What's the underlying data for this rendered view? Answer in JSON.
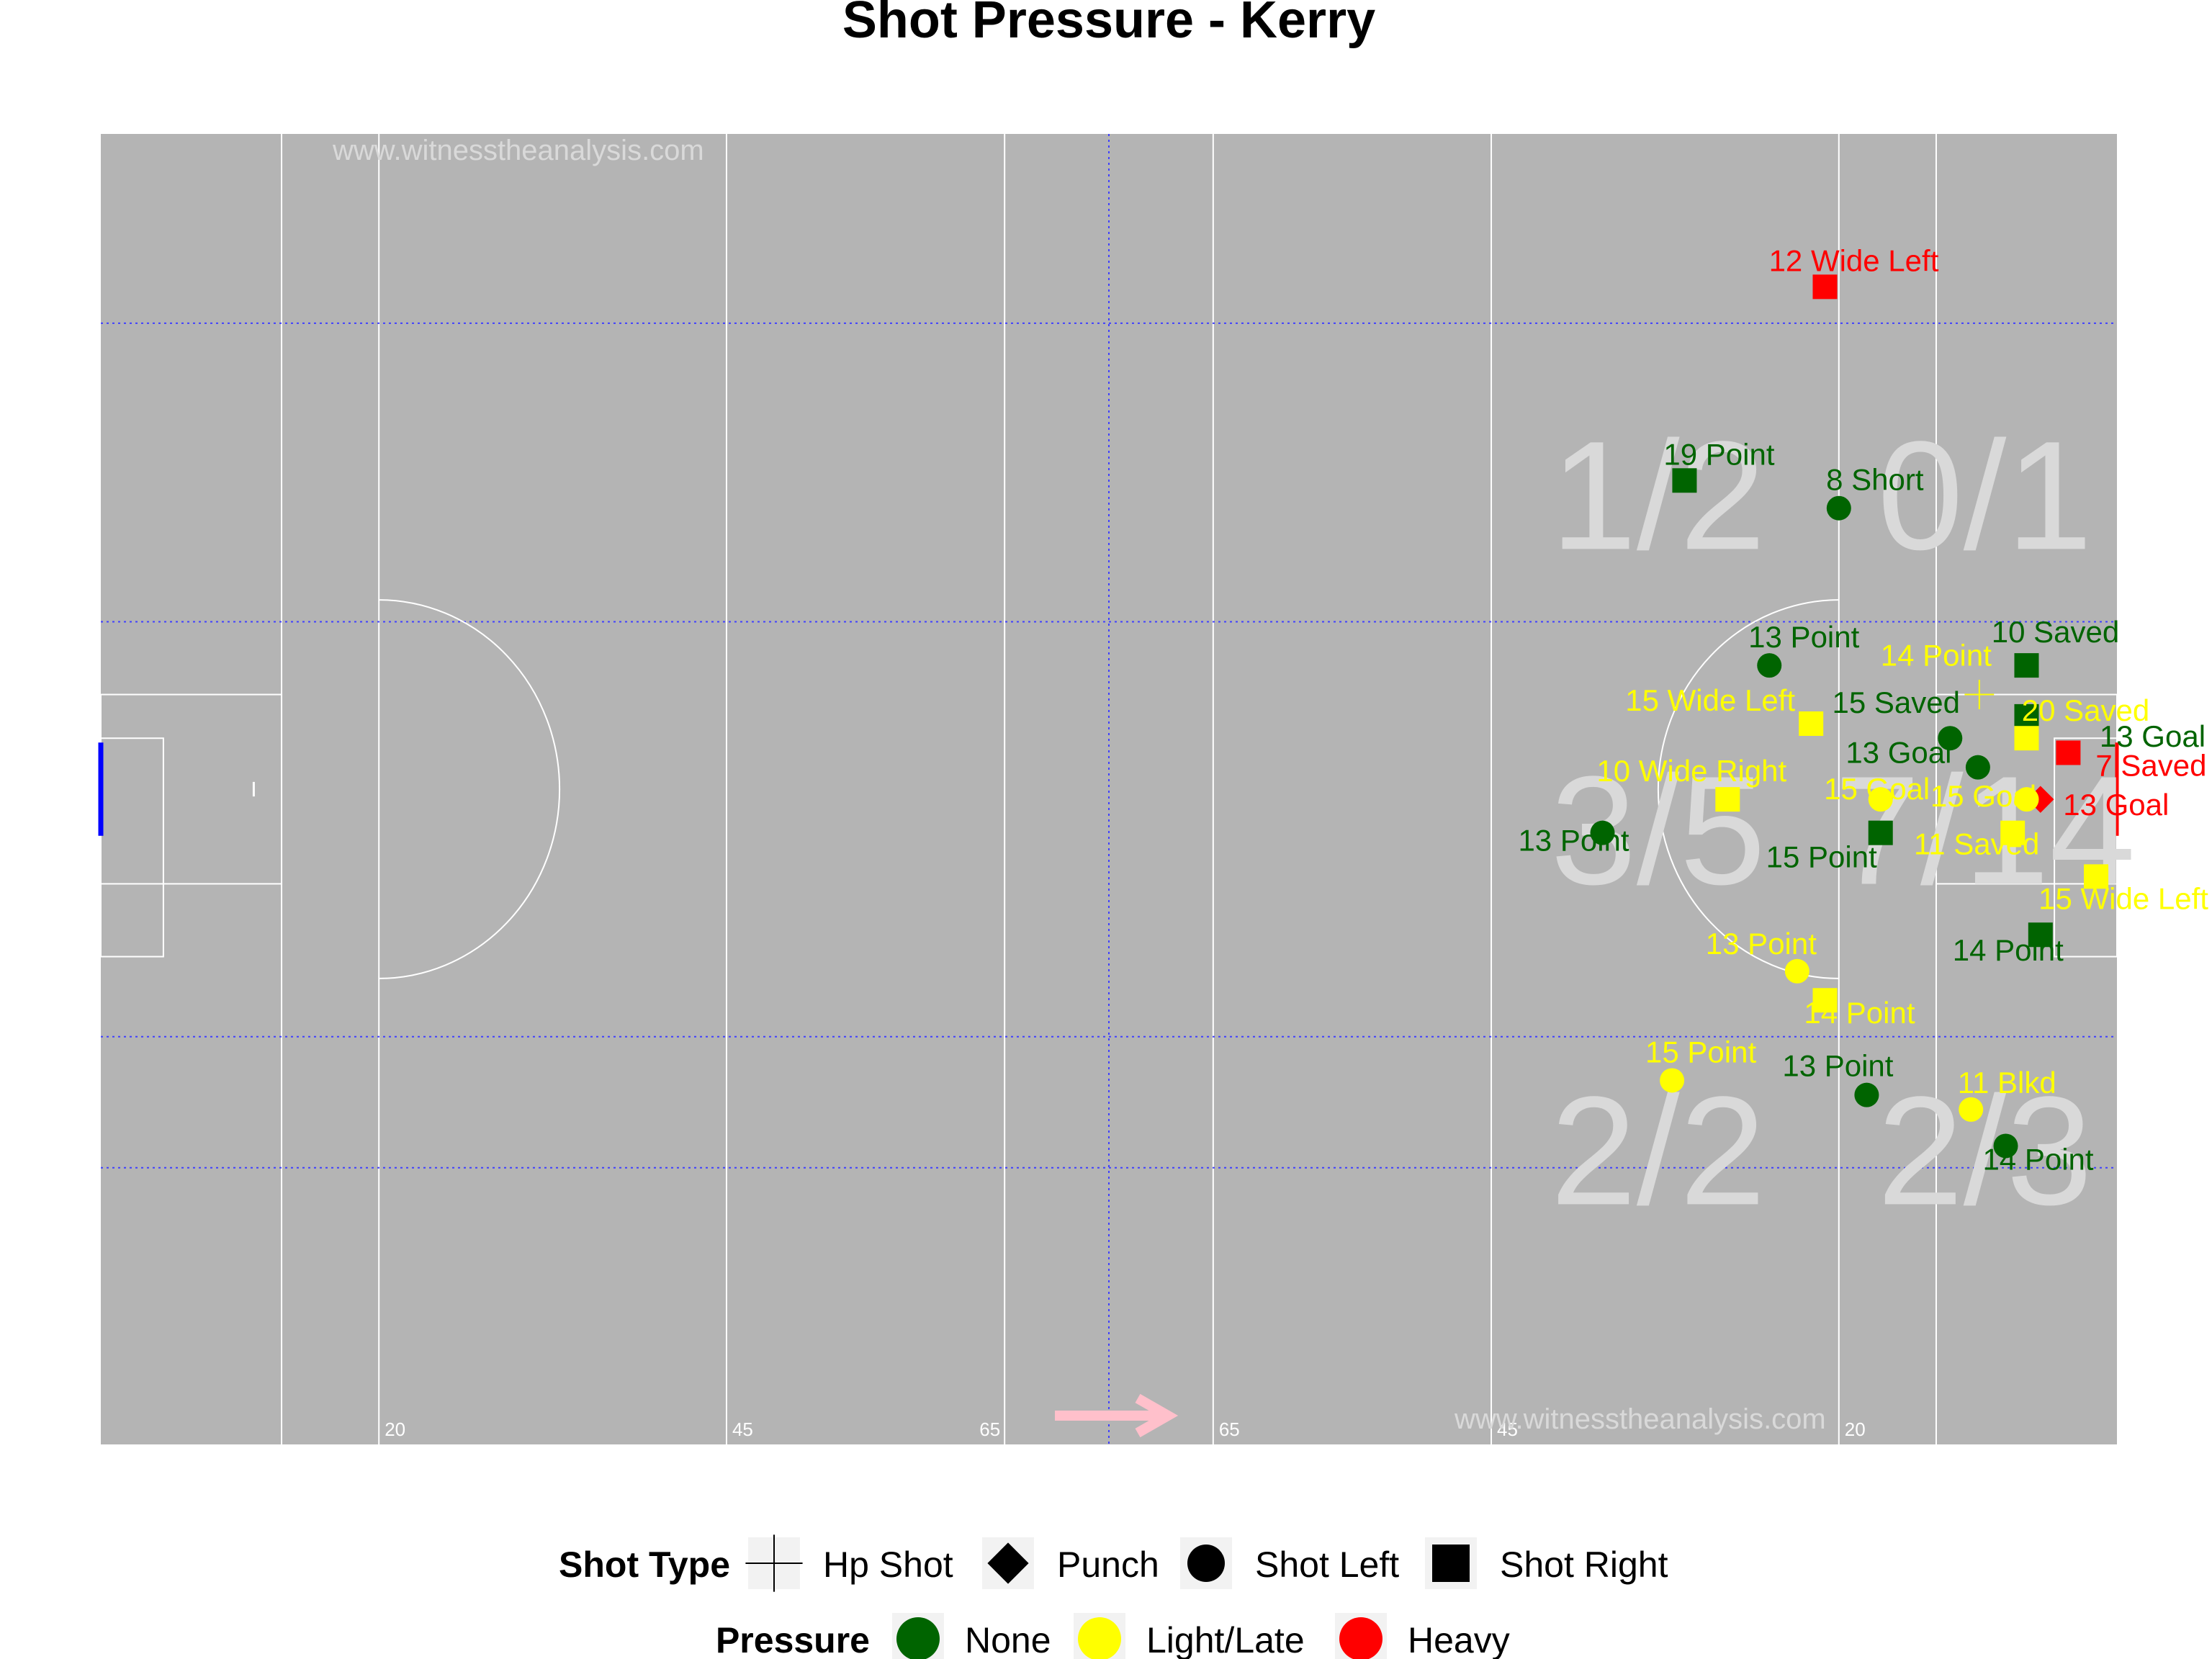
{
  "chart_data": {
    "type": "scatter",
    "title": "Shot Pressure - Kerry",
    "xlim": [
      0,
      145
    ],
    "ylim": [
      0,
      90
    ],
    "watermark": "www.witnesstheanalysis.com",
    "pitch_markings": [
      "20",
      "45",
      "65",
      "65",
      "45",
      "20"
    ],
    "zone_totals": [
      "1/2",
      "0/1",
      "3/5",
      "7/14",
      "2/2",
      "2/3"
    ],
    "colors": {
      "pitch": "#b4b4b4",
      "None": "#006400",
      "Light/Late": "#ffff00",
      "Heavy": "#ff0000",
      "direction_arrow": "#ffc0cb",
      "zone_text": "#d9d9d9"
    },
    "legend": {
      "shot_type_title": "Shot Type",
      "shot_types": [
        {
          "label": "Hp Shot",
          "shape": "plus"
        },
        {
          "label": "Punch",
          "shape": "diamond"
        },
        {
          "label": "Shot Left",
          "shape": "circle"
        },
        {
          "label": "Shot Right",
          "shape": "square"
        }
      ],
      "pressure_title": "Pressure",
      "pressures": [
        {
          "label": "None",
          "color": "#006400"
        },
        {
          "label": "Light/Late",
          "color": "#ffff00"
        },
        {
          "label": "Heavy",
          "color": "#ff0000"
        }
      ]
    },
    "shots": [
      {
        "x": 124.0,
        "y": 79.5,
        "label": "12 Wide Left",
        "pressure": "Heavy",
        "shape": "square"
      },
      {
        "x": 113.9,
        "y": 66.2,
        "label": "19 Point",
        "pressure": "None",
        "shape": "square"
      },
      {
        "x": 125.0,
        "y": 64.3,
        "label": "8 Short",
        "pressure": "None",
        "shape": "circle"
      },
      {
        "x": 120.0,
        "y": 53.5,
        "label": "13 Point",
        "pressure": "None",
        "shape": "circle"
      },
      {
        "x": 138.5,
        "y": 53.5,
        "label": "10 Saved",
        "pressure": "None",
        "shape": "square"
      },
      {
        "x": 135.1,
        "y": 51.5,
        "label": "14 Point",
        "pressure": "Light/Late",
        "shape": "plus"
      },
      {
        "x": 138.5,
        "y": 50.0,
        "label": "13 Goal",
        "pressure": "None",
        "shape": "square"
      },
      {
        "x": 138.5,
        "y": 48.5,
        "label": "20 Saved",
        "pressure": "Light/Late",
        "shape": "square"
      },
      {
        "x": 123.0,
        "y": 49.5,
        "label": "15 Wide Left",
        "pressure": "Light/Late",
        "shape": "square"
      },
      {
        "x": 133.0,
        "y": 48.5,
        "label": "15 Saved",
        "pressure": "None",
        "shape": "circle"
      },
      {
        "x": 141.5,
        "y": 47.5,
        "label": "7 Saved",
        "pressure": "Heavy",
        "shape": "square"
      },
      {
        "x": 135.0,
        "y": 46.5,
        "label": "13 Goal",
        "pressure": "None",
        "shape": "circle"
      },
      {
        "x": 139.5,
        "y": 44.3,
        "label": "13 Goal",
        "pressure": "Heavy",
        "shape": "diamond"
      },
      {
        "x": 138.5,
        "y": 44.3,
        "label": "15 Goal",
        "pressure": "Light/Late",
        "shape": "circle"
      },
      {
        "x": 128.0,
        "y": 44.3,
        "label": "15 Goal",
        "pressure": "Light/Late",
        "shape": "circle"
      },
      {
        "x": 117.0,
        "y": 44.3,
        "label": "10 Wide Right",
        "pressure": "Light/Late",
        "shape": "square"
      },
      {
        "x": 128.0,
        "y": 42.0,
        "label": "15 Point",
        "pressure": "None",
        "shape": "square"
      },
      {
        "x": 137.5,
        "y": 42.0,
        "label": "11 Saved",
        "pressure": "Light/Late",
        "shape": "square"
      },
      {
        "x": 108.0,
        "y": 42.0,
        "label": "13 Point",
        "pressure": "None",
        "shape": "circle"
      },
      {
        "x": 143.5,
        "y": 39.0,
        "label": "15 Wide Left",
        "pressure": "Light/Late",
        "shape": "square"
      },
      {
        "x": 139.5,
        "y": 35.0,
        "label": "14 Point",
        "pressure": "None",
        "shape": "square"
      },
      {
        "x": 122.0,
        "y": 32.5,
        "label": "13 Point",
        "pressure": "Light/Late",
        "shape": "circle"
      },
      {
        "x": 124.0,
        "y": 30.5,
        "label": "14 Point",
        "pressure": "Light/Late",
        "shape": "square"
      },
      {
        "x": 113.0,
        "y": 25.0,
        "label": "15 Point",
        "pressure": "Light/Late",
        "shape": "circle"
      },
      {
        "x": 127.0,
        "y": 24.0,
        "label": "13 Point",
        "pressure": "None",
        "shape": "circle"
      },
      {
        "x": 134.5,
        "y": 23.0,
        "label": "11 Blkd",
        "pressure": "Light/Late",
        "shape": "circle"
      },
      {
        "x": 137.0,
        "y": 20.5,
        "label": "14 Point",
        "pressure": "None",
        "shape": "circle"
      }
    ]
  }
}
